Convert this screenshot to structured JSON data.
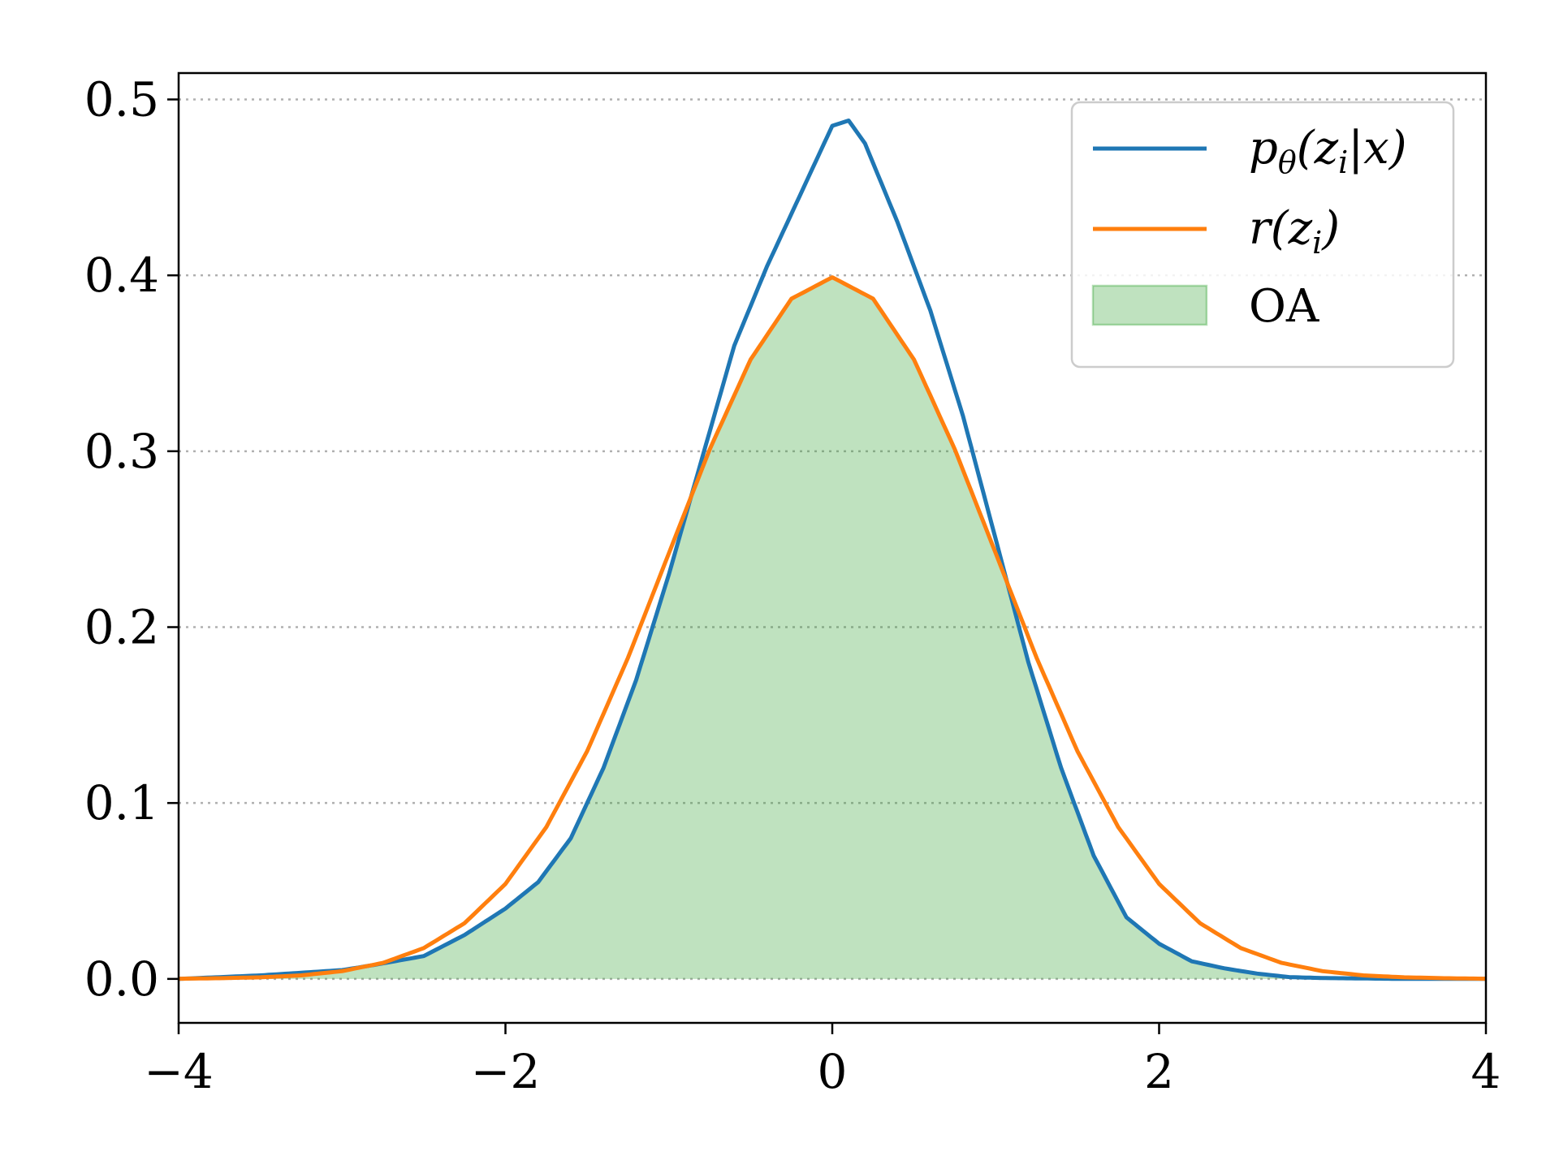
{
  "chart_data": {
    "type": "line",
    "title": "",
    "xlabel": "",
    "ylabel": "",
    "xlim": [
      -4,
      4
    ],
    "ylim": [
      -0.025,
      0.515
    ],
    "x_ticks": [
      -4,
      -2,
      0,
      2,
      4
    ],
    "x_tick_labels": [
      "−4",
      "−2",
      "0",
      "2",
      "4"
    ],
    "y_ticks": [
      0.0,
      0.1,
      0.2,
      0.3,
      0.4,
      0.5
    ],
    "y_tick_labels": [
      "0.0",
      "0.1",
      "0.2",
      "0.3",
      "0.4",
      "0.5"
    ],
    "grid": "horizontal dotted",
    "legend_position": "top-right",
    "colors": {
      "series_p": "#1f77b4",
      "series_r": "#ff7f0e",
      "overlap_fill": "#2ca02c",
      "grid": "#b0b0b0",
      "legend_border": "#cccccc"
    },
    "series": [
      {
        "name": "p_θ(z_i|x)",
        "legend_parts": [
          "p",
          "θ",
          "(z",
          "i",
          "|x)"
        ],
        "color": "#1f77b4",
        "x": [
          -4.0,
          -3.5,
          -3.0,
          -2.8,
          -2.5,
          -2.25,
          -2.0,
          -1.8,
          -1.6,
          -1.4,
          -1.2,
          -1.0,
          -0.8,
          -0.6,
          -0.4,
          -0.2,
          0.0,
          0.1,
          0.2,
          0.4,
          0.6,
          0.8,
          1.0,
          1.2,
          1.4,
          1.6,
          1.8,
          2.0,
          2.2,
          2.4,
          2.6,
          2.8,
          3.0,
          3.5,
          4.0
        ],
        "y": [
          0.0,
          0.002,
          0.005,
          0.008,
          0.013,
          0.025,
          0.04,
          0.055,
          0.08,
          0.12,
          0.17,
          0.23,
          0.295,
          0.36,
          0.405,
          0.445,
          0.485,
          0.488,
          0.475,
          0.43,
          0.38,
          0.32,
          0.25,
          0.18,
          0.12,
          0.07,
          0.035,
          0.02,
          0.01,
          0.006,
          0.003,
          0.001,
          0.0005,
          0.0,
          0.0
        ]
      },
      {
        "name": "r(z_i)",
        "legend_parts": [
          "r",
          "",
          "(z",
          "i",
          ")"
        ],
        "color": "#ff7f0e",
        "x": [
          -4.0,
          -3.75,
          -3.5,
          -3.25,
          -3.0,
          -2.75,
          -2.5,
          -2.25,
          -2.0,
          -1.75,
          -1.5,
          -1.25,
          -1.0,
          -0.75,
          -0.5,
          -0.25,
          0.0,
          0.25,
          0.5,
          0.75,
          1.0,
          1.25,
          1.5,
          1.75,
          2.0,
          2.25,
          2.5,
          2.75,
          3.0,
          3.25,
          3.5,
          3.75,
          4.0
        ],
        "y": [
          0.0001,
          0.0004,
          0.0009,
          0.002,
          0.0044,
          0.0091,
          0.0175,
          0.0317,
          0.054,
          0.0863,
          0.1295,
          0.1826,
          0.242,
          0.3011,
          0.3521,
          0.3867,
          0.3989,
          0.3867,
          0.3521,
          0.3011,
          0.242,
          0.1826,
          0.1295,
          0.0863,
          0.054,
          0.0317,
          0.0175,
          0.0091,
          0.0044,
          0.002,
          0.0009,
          0.0004,
          0.0001
        ]
      }
    ],
    "fill": {
      "name": "OA",
      "description": "min of the two series",
      "color": "#2ca02c",
      "opacity": 0.3
    }
  }
}
